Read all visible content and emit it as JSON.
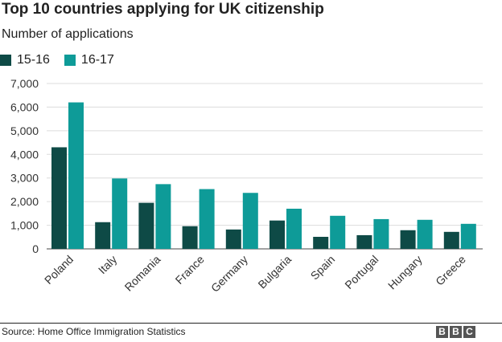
{
  "chart_data": {
    "type": "bar",
    "title": "Top 10 countries applying for UK citizenship",
    "subtitle": "Number of applications",
    "categories": [
      "Poland",
      "Italy",
      "Romania",
      "France",
      "Germany",
      "Bulgaria",
      "Spain",
      "Portugal",
      "Hungary",
      "Greece"
    ],
    "series": [
      {
        "name": "15-16",
        "color": "#0e4a46",
        "values": [
          4300,
          1130,
          1950,
          960,
          820,
          1200,
          510,
          580,
          790,
          720
        ]
      },
      {
        "name": "16-17",
        "color": "#0e9b98",
        "values": [
          6200,
          2980,
          2740,
          2530,
          2370,
          1700,
          1400,
          1260,
          1230,
          1060
        ]
      }
    ],
    "yticks": [
      0,
      1000,
      2000,
      3000,
      4000,
      5000,
      6000,
      7000
    ],
    "ytick_labels": [
      "0",
      "1,000",
      "2,000",
      "3,000",
      "4,000",
      "5,000",
      "6,000",
      "7,000"
    ],
    "ylim": [
      0,
      7000
    ],
    "grid": true,
    "legend_position": "top-left"
  },
  "footer": {
    "source": "Source: Home Office Immigration Statistics",
    "logo_letters": [
      "B",
      "B",
      "C"
    ]
  }
}
